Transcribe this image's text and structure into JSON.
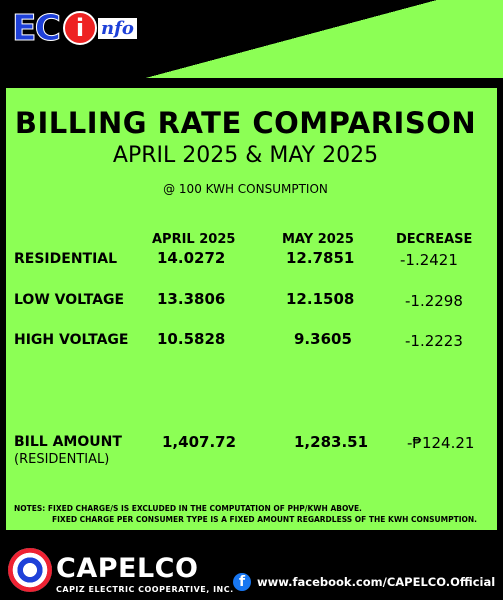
{
  "logo": {
    "ec": "EC",
    "i": "i",
    "nfo": "nfo"
  },
  "title": "BILLING RATE COMPARISON",
  "subtitle": "APRIL 2025 & MAY 2025",
  "consumption": "@ 100 KWH CONSUMPTION",
  "columns": {
    "april": "APRIL 2025",
    "may": "MAY 2025",
    "decrease": "DECREASE"
  },
  "rows": [
    {
      "label": "RESIDENTIAL",
      "april": "14.0272",
      "may": "12.7851",
      "decrease": "-1.2421"
    },
    {
      "label": "LOW VOLTAGE",
      "april": "13.3806",
      "may": "12.1508",
      "decrease": "-1.2298"
    },
    {
      "label": "HIGH VOLTAGE",
      "april": "10.5828",
      "may": "9.3605",
      "decrease": "-1.2223"
    }
  ],
  "bill": {
    "label": "BILL AMOUNT",
    "sublabel": "(RESIDENTIAL)",
    "april": "1,407.72",
    "may": "1,283.51",
    "decrease": "-₱124.21"
  },
  "notes": {
    "line1": "NOTES: FIXED CHARGE/S IS EXCLUDED IN THE COMPUTATION OF PHP/KWH ABOVE.",
    "line2": "FIXED CHARGE PER CONSUMER TYPE IS A FIXED AMOUNT  REGARDLESS OF THE KWH CONSUMPTION."
  },
  "footer": {
    "brand": "CAPELCO",
    "brand_sub": "CAPIZ ELECTRIC COOPERATIVE, INC.",
    "fb_icon": "f",
    "link": "www.facebook.com/CAPELCO.Official"
  },
  "colors": {
    "accent_green": "#8cff55",
    "background": "#000000",
    "logo_blue": "#1e40d8",
    "logo_red": "#e22222",
    "facebook_blue": "#1877f2"
  }
}
